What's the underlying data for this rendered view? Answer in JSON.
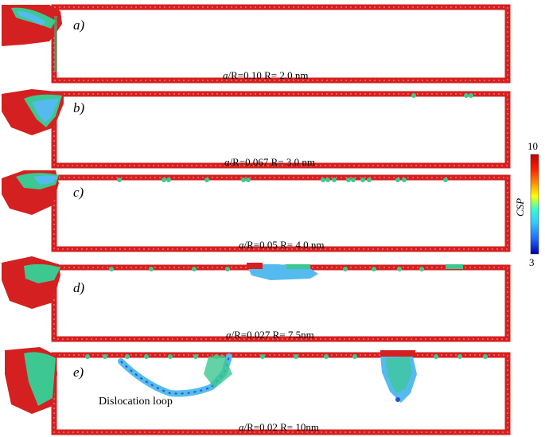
{
  "panels": [
    {
      "tag": "a)",
      "ratio_symbol": "a",
      "caption": "/R=0.10 R= 2.0 nm"
    },
    {
      "tag": "b)",
      "ratio_symbol": "a",
      "caption": "/R=0.067 R= 3.0 nm"
    },
    {
      "tag": "c)",
      "ratio_symbol": "a",
      "caption": "/R=0.05 R= 4.0 nm"
    },
    {
      "tag": "d)",
      "ratio_symbol": "a",
      "caption": "/R=0.027 R= 7.5nm"
    },
    {
      "tag": "e)",
      "ratio_symbol": "a",
      "caption": "/R=0.02 R= 10nm"
    }
  ],
  "annotation": "Dislocation loop",
  "colorbar": {
    "title": "CSP",
    "max_label": "10",
    "min_label": "3",
    "colors": [
      "#c00000",
      "#ff2000",
      "#ff9900",
      "#ffff00",
      "#33ffcc",
      "#33ccff",
      "#2266ff",
      "#0000aa"
    ]
  },
  "palette": {
    "surface": "#d42020",
    "fcc": "#3cc890",
    "core": "#55bbee",
    "deep": "#2255cc"
  }
}
